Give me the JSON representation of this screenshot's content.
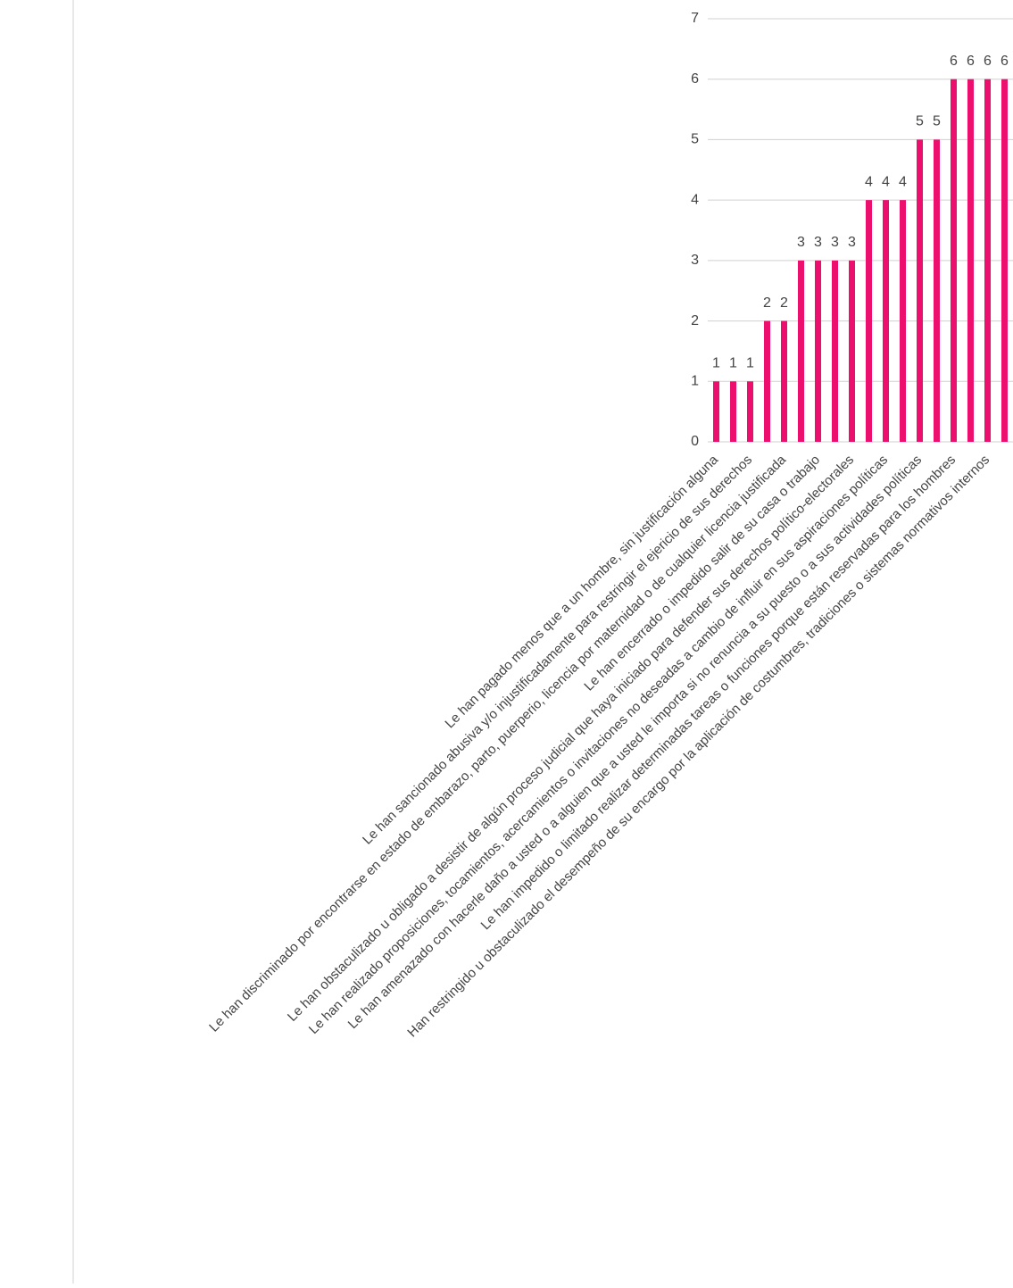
{
  "chart_data": {
    "type": "bar",
    "categories": [
      "Le han pagado menos que a un hombre, sin justificación alguna",
      null,
      "Le han sancionado abusiva y/o injustificadamente para restringir el ejericio de sus derechos",
      null,
      "Le han discriminado por encontrarse en estado de embarazo, parto, puerperio, licencia por maternidad o de cualquier licencia justificada",
      null,
      "Le han encerrado o impedido salir de su casa o trabajo",
      null,
      "Le han obstaculizado u obligado a desistir de algún proceso judicial que haya iniciado para defender sus derechos político-electorales",
      null,
      "Le han realizado proposiciones, tocamientos, acercamientos o invitaciones no deseadas a cambio de influir en sus aspiraciones políticas",
      null,
      "Le han amenazado con hacerle daño a usted o a alguien que a usted le importa si no renuncia a su puesto o a sus actividades políticas",
      null,
      "Le han impedido o limitado realizar determinadas tareas o funciones porque están reservadas para los hombres",
      null,
      "Han restringido u obstaculizado el desempeño de su encargo por la aplicación de costumbres, tradiciones o sistemas normativos internos",
      null
    ],
    "values": [
      1,
      1,
      1,
      2,
      2,
      3,
      3,
      3,
      3,
      4,
      4,
      4,
      5,
      5,
      6,
      6,
      6,
      6
    ],
    "color": "#ec0f6e",
    "ylim": [
      0,
      7
    ],
    "yticks": [
      0,
      1,
      2,
      3,
      4,
      5,
      6,
      7
    ],
    "grid": true
  }
}
